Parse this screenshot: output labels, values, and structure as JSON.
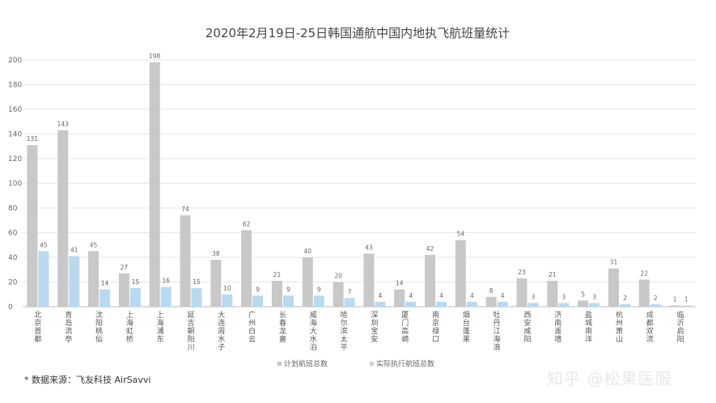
{
  "chart_data": {
    "type": "bar",
    "title": "2020年2月19日-25日韩国通航中国内地执飞航班量统计",
    "ylim": [
      0,
      200
    ],
    "yticks": [
      0,
      20,
      40,
      60,
      80,
      100,
      120,
      140,
      160,
      180,
      200
    ],
    "grid": true,
    "legend_position": "bottom",
    "categories": [
      "北京首都",
      "青岛流亭",
      "沈阳桃仙",
      "上海虹桥",
      "上海浦东",
      "延吉朝阳川",
      "大连周水子",
      "广州白云",
      "长春龙嘉",
      "威海大水泊",
      "哈尔滨太平",
      "深圳宝安",
      "厦门高崎",
      "南京禄口",
      "烟台蓬莱",
      "牡丹江海浪",
      "西安咸阳",
      "济南遥墙",
      "盐城南洋",
      "杭州萧山",
      "成都双流",
      "临沂启阳"
    ],
    "series": [
      {
        "name": "计划航班总数",
        "color": "#c8c8c8",
        "values": [
          131,
          143,
          45,
          27,
          198,
          74,
          38,
          62,
          21,
          40,
          20,
          43,
          14,
          42,
          54,
          8,
          23,
          21,
          5,
          31,
          22,
          1
        ]
      },
      {
        "name": "实际执行航班总数",
        "color": "#b8d9f0",
        "values": [
          45,
          41,
          14,
          15,
          16,
          15,
          10,
          9,
          9,
          9,
          7,
          4,
          4,
          4,
          4,
          4,
          3,
          3,
          3,
          2,
          2,
          1
        ]
      }
    ]
  },
  "footer": {
    "source": "* 数据来源：飞友科技 AirSavvi",
    "watermark": "知乎 @松果医服"
  }
}
